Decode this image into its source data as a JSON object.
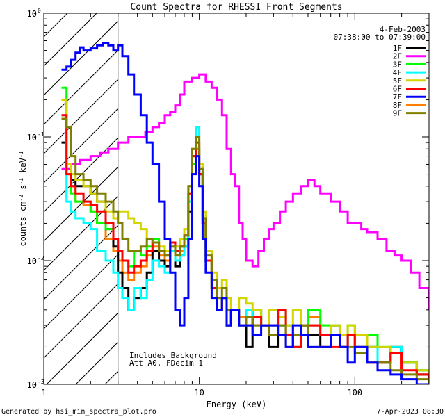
{
  "footer_left": "Generated by hsi_min_spectra_plot.pro",
  "footer_right": "7-Apr-2023 08:30",
  "chart_data": {
    "type": "line",
    "title": "Count Spectra for RHESSI Front Segments",
    "xlabel": "Energy (keV)",
    "ylabel_parts": {
      "pre": "counts cm",
      "e1": "-2",
      "mid": " s",
      "e2": "-1",
      "post": " keV",
      "e3": "-1"
    },
    "x_scale": "log",
    "y_scale": "log",
    "xlim": [
      1,
      300
    ],
    "ylim": [
      0.001,
      1
    ],
    "x_ticks": [
      {
        "value": 1,
        "label": "1"
      },
      {
        "value": 10,
        "label": "10"
      },
      {
        "value": 100,
        "label": "100"
      }
    ],
    "y_ticks": [
      {
        "value": 0.001,
        "label": "10",
        "exp": "-3"
      },
      {
        "value": 0.01,
        "label": "10",
        "exp": "-2"
      },
      {
        "value": 0.1,
        "label": "10",
        "exp": "-1"
      },
      {
        "value": 1,
        "label": "10",
        "exp": "0"
      }
    ],
    "hatched_region": {
      "x_min": 1,
      "x_max": 3
    },
    "date": "4-Feb-2003",
    "time_range": "07:38:00 to 07:39:00",
    "annotations": [
      "Includes Background",
      "Att A0, FDecim 1"
    ],
    "legend_position": "top-right",
    "series": [
      {
        "name": "1F",
        "color": "#000000",
        "x": [
          1.3,
          1.4,
          1.5,
          1.6,
          1.8,
          2.0,
          2.2,
          2.5,
          2.8,
          3.0,
          3.2,
          3.5,
          3.8,
          4.2,
          4.6,
          5.0,
          5.5,
          6.0,
          6.5,
          7.0,
          7.5,
          8.0,
          8.5,
          9.0,
          9.5,
          10.0,
          10.5,
          11,
          12,
          13,
          14,
          15,
          16,
          18,
          20,
          22,
          25,
          28,
          32,
          36,
          40,
          45,
          50,
          60,
          70,
          80,
          90,
          100,
          120,
          140,
          170,
          200,
          250,
          300
        ],
        "y": [
          0.09,
          0.06,
          0.045,
          0.04,
          0.04,
          0.035,
          0.03,
          0.018,
          0.013,
          0.008,
          0.006,
          0.004,
          0.005,
          0.006,
          0.008,
          0.012,
          0.01,
          0.009,
          0.012,
          0.009,
          0.011,
          0.013,
          0.025,
          0.06,
          0.08,
          0.05,
          0.02,
          0.01,
          0.006,
          0.004,
          0.005,
          0.003,
          0.004,
          0.003,
          0.002,
          0.004,
          0.003,
          0.002,
          0.003,
          0.0025,
          0.002,
          0.003,
          0.0025,
          0.002,
          0.003,
          0.002,
          0.0025,
          0.002,
          0.002,
          0.0015,
          0.002,
          0.0015,
          0.0012,
          0.0011
        ]
      },
      {
        "name": "2F",
        "color": "#ff00ff",
        "x": [
          1.3,
          1.5,
          1.7,
          2.0,
          2.3,
          2.6,
          3.0,
          3.5,
          4.0,
          4.5,
          5.0,
          5.5,
          6.0,
          6.5,
          7.0,
          7.5,
          8.0,
          9.0,
          10.0,
          11,
          12,
          13,
          14,
          15,
          16,
          17,
          18,
          19,
          20,
          22,
          24,
          26,
          28,
          30,
          33,
          36,
          40,
          45,
          50,
          55,
          60,
          70,
          80,
          90,
          100,
          110,
          120,
          140,
          160,
          180,
          200,
          230,
          260,
          300
        ],
        "y": [
          0.055,
          0.06,
          0.065,
          0.07,
          0.075,
          0.08,
          0.09,
          0.1,
          0.1,
          0.11,
          0.12,
          0.13,
          0.15,
          0.16,
          0.18,
          0.22,
          0.28,
          0.3,
          0.32,
          0.28,
          0.25,
          0.2,
          0.15,
          0.08,
          0.05,
          0.04,
          0.02,
          0.015,
          0.01,
          0.009,
          0.012,
          0.015,
          0.018,
          0.02,
          0.025,
          0.03,
          0.035,
          0.04,
          0.045,
          0.04,
          0.035,
          0.03,
          0.025,
          0.02,
          0.02,
          0.018,
          0.017,
          0.015,
          0.012,
          0.011,
          0.01,
          0.008,
          0.006,
          0.004
        ]
      },
      {
        "name": "3F",
        "color": "#00ff00",
        "x": [
          1.3,
          1.4,
          1.5,
          1.6,
          1.8,
          2.0,
          2.2,
          2.5,
          2.8,
          3.0,
          3.2,
          3.5,
          3.8,
          4.2,
          4.6,
          5.0,
          5.5,
          6.0,
          6.5,
          7.0,
          7.5,
          8.0,
          8.5,
          9.0,
          9.5,
          10.0,
          10.5,
          11,
          12,
          13,
          14,
          15,
          16,
          18,
          20,
          22,
          25,
          28,
          32,
          36,
          40,
          45,
          50,
          60,
          70,
          80,
          90,
          100,
          120,
          140,
          170,
          200,
          250,
          300
        ],
        "y": [
          0.25,
          0.05,
          0.035,
          0.03,
          0.03,
          0.025,
          0.02,
          0.018,
          0.015,
          0.012,
          0.01,
          0.009,
          0.012,
          0.011,
          0.013,
          0.015,
          0.012,
          0.011,
          0.014,
          0.012,
          0.013,
          0.015,
          0.03,
          0.06,
          0.08,
          0.05,
          0.02,
          0.01,
          0.006,
          0.004,
          0.005,
          0.003,
          0.004,
          0.003,
          0.003,
          0.004,
          0.003,
          0.003,
          0.004,
          0.003,
          0.002,
          0.003,
          0.004,
          0.003,
          0.003,
          0.0025,
          0.003,
          0.002,
          0.0025,
          0.002,
          0.0018,
          0.0015,
          0.0013,
          0.0011
        ]
      },
      {
        "name": "4F",
        "color": "#00ffff",
        "x": [
          1.3,
          1.4,
          1.5,
          1.6,
          1.8,
          2.0,
          2.2,
          2.5,
          2.8,
          3.0,
          3.2,
          3.5,
          3.8,
          4.2,
          4.6,
          5.0,
          5.5,
          6.0,
          6.5,
          7.0,
          7.5,
          8.0,
          8.5,
          9.0,
          9.5,
          10.0,
          10.5,
          11,
          12,
          13,
          14,
          15,
          16,
          18,
          20,
          22,
          25,
          28,
          32,
          36,
          40,
          45,
          50,
          60,
          70,
          80,
          90,
          100,
          120,
          140,
          170,
          200,
          250,
          300
        ],
        "y": [
          0.15,
          0.03,
          0.025,
          0.022,
          0.02,
          0.018,
          0.012,
          0.01,
          0.008,
          0.006,
          0.005,
          0.004,
          0.006,
          0.005,
          0.007,
          0.01,
          0.009,
          0.008,
          0.012,
          0.01,
          0.011,
          0.013,
          0.03,
          0.07,
          0.12,
          0.06,
          0.02,
          0.01,
          0.006,
          0.004,
          0.005,
          0.003,
          0.004,
          0.003,
          0.004,
          0.0035,
          0.003,
          0.004,
          0.003,
          0.003,
          0.0025,
          0.003,
          0.003,
          0.0025,
          0.003,
          0.002,
          0.0025,
          0.002,
          0.002,
          0.0015,
          0.002,
          0.0015,
          0.0013,
          0.0011
        ]
      },
      {
        "name": "5F",
        "color": "#d4d400",
        "x": [
          1.3,
          1.4,
          1.5,
          1.6,
          1.8,
          2.0,
          2.2,
          2.5,
          2.8,
          3.0,
          3.2,
          3.5,
          3.8,
          4.2,
          4.6,
          5.0,
          5.5,
          6.0,
          6.5,
          7.0,
          7.5,
          8.0,
          8.5,
          9.0,
          9.5,
          10.0,
          10.5,
          11,
          12,
          13,
          14,
          15,
          16,
          18,
          20,
          22,
          25,
          28,
          32,
          36,
          40,
          45,
          50,
          60,
          70,
          80,
          90,
          100,
          120,
          140,
          170,
          200,
          250,
          300
        ],
        "y": [
          0.2,
          0.06,
          0.05,
          0.045,
          0.04,
          0.035,
          0.03,
          0.025,
          0.022,
          0.025,
          0.025,
          0.022,
          0.02,
          0.018,
          0.015,
          0.014,
          0.013,
          0.012,
          0.014,
          0.013,
          0.015,
          0.018,
          0.04,
          0.08,
          0.1,
          0.06,
          0.025,
          0.012,
          0.008,
          0.006,
          0.007,
          0.005,
          0.004,
          0.005,
          0.0045,
          0.004,
          0.003,
          0.004,
          0.0035,
          0.003,
          0.004,
          0.003,
          0.003,
          0.0025,
          0.003,
          0.0025,
          0.003,
          0.0025,
          0.002,
          0.002,
          0.0018,
          0.0015,
          0.0013,
          0.0011
        ]
      },
      {
        "name": "6F",
        "color": "#ff0000",
        "x": [
          1.3,
          1.4,
          1.5,
          1.6,
          1.8,
          2.0,
          2.2,
          2.5,
          2.8,
          3.0,
          3.2,
          3.5,
          3.8,
          4.2,
          4.6,
          5.0,
          5.5,
          6.0,
          6.5,
          7.0,
          7.5,
          8.0,
          8.5,
          9.0,
          9.5,
          10.0,
          10.5,
          11,
          12,
          13,
          14,
          15,
          16,
          18,
          20,
          22,
          25,
          28,
          32,
          36,
          40,
          45,
          50,
          60,
          70,
          80,
          90,
          100,
          120,
          140,
          170,
          200,
          250,
          300
        ],
        "y": [
          0.15,
          0.05,
          0.04,
          0.035,
          0.03,
          0.028,
          0.025,
          0.02,
          0.015,
          0.012,
          0.01,
          0.008,
          0.009,
          0.01,
          0.012,
          0.014,
          0.012,
          0.011,
          0.014,
          0.012,
          0.013,
          0.016,
          0.035,
          0.07,
          0.09,
          0.05,
          0.02,
          0.01,
          0.006,
          0.004,
          0.005,
          0.003,
          0.004,
          0.003,
          0.003,
          0.0035,
          0.003,
          0.003,
          0.004,
          0.0025,
          0.002,
          0.003,
          0.003,
          0.0025,
          0.002,
          0.002,
          0.0025,
          0.002,
          0.0015,
          0.0015,
          0.0018,
          0.0013,
          0.0012,
          0.0011
        ]
      },
      {
        "name": "7F",
        "color": "#0000ff",
        "x": [
          1.3,
          1.4,
          1.5,
          1.6,
          1.7,
          1.8,
          2.0,
          2.2,
          2.4,
          2.6,
          2.8,
          3.0,
          3.2,
          3.5,
          3.8,
          4.2,
          4.6,
          5.0,
          5.5,
          6.0,
          6.5,
          7.0,
          7.5,
          8.0,
          8.5,
          9.0,
          9.5,
          10.0,
          10.5,
          11,
          12,
          13,
          14,
          15,
          16,
          18,
          20,
          22,
          25,
          28,
          32,
          36,
          40,
          45,
          50,
          60,
          70,
          80,
          90,
          100,
          120,
          140,
          170,
          200,
          250,
          300
        ],
        "y": [
          0.35,
          0.37,
          0.42,
          0.48,
          0.53,
          0.5,
          0.52,
          0.55,
          0.57,
          0.55,
          0.5,
          0.55,
          0.45,
          0.32,
          0.22,
          0.15,
          0.09,
          0.06,
          0.03,
          0.015,
          0.008,
          0.004,
          0.003,
          0.005,
          0.015,
          0.05,
          0.07,
          0.04,
          0.015,
          0.008,
          0.005,
          0.004,
          0.005,
          0.003,
          0.004,
          0.003,
          0.003,
          0.0025,
          0.003,
          0.003,
          0.0025,
          0.002,
          0.003,
          0.0025,
          0.002,
          0.002,
          0.0025,
          0.002,
          0.0015,
          0.002,
          0.0015,
          0.0013,
          0.0012,
          0.0011,
          0.001,
          0.001
        ]
      },
      {
        "name": "8F",
        "color": "#ff8000",
        "x": [
          1.3,
          1.4,
          1.5,
          1.6,
          1.8,
          2.0,
          2.2,
          2.5,
          2.8,
          3.0,
          3.2,
          3.5,
          3.8,
          4.2,
          4.6,
          5.0,
          5.5,
          6.0,
          6.5,
          7.0,
          7.5,
          8.0,
          8.5,
          9.0,
          9.5,
          10.0,
          10.5,
          11,
          12,
          13,
          14,
          15,
          16,
          18,
          20,
          22,
          25,
          28,
          32,
          36,
          40,
          45,
          50,
          60,
          70,
          80,
          90,
          100,
          120,
          140,
          170,
          200,
          250,
          300
        ],
        "y": [
          0.2,
          0.05,
          0.04,
          0.03,
          0.028,
          0.025,
          0.02,
          0.015,
          0.012,
          0.01,
          0.008,
          0.007,
          0.008,
          0.009,
          0.011,
          0.013,
          0.011,
          0.01,
          0.013,
          0.011,
          0.012,
          0.015,
          0.035,
          0.07,
          0.09,
          0.05,
          0.02,
          0.01,
          0.006,
          0.004,
          0.005,
          0.003,
          0.004,
          0.0035,
          0.004,
          0.003,
          0.003,
          0.004,
          0.0035,
          0.003,
          0.0025,
          0.003,
          0.0035,
          0.0025,
          0.003,
          0.002,
          0.0025,
          0.002,
          0.002,
          0.0015,
          0.002,
          0.0015,
          0.0013,
          0.0011
        ]
      },
      {
        "name": "9F",
        "color": "#808000",
        "x": [
          1.3,
          1.4,
          1.5,
          1.6,
          1.8,
          2.0,
          2.2,
          2.5,
          2.8,
          3.0,
          3.2,
          3.5,
          3.8,
          4.2,
          4.6,
          5.0,
          5.5,
          6.0,
          6.5,
          7.0,
          7.5,
          8.0,
          8.5,
          9.0,
          9.5,
          10.0,
          10.5,
          11,
          12,
          13,
          14,
          15,
          16,
          18,
          20,
          22,
          25,
          28,
          32,
          36,
          40,
          45,
          50,
          60,
          70,
          80,
          90,
          100,
          120,
          140,
          170,
          200,
          250,
          300
        ],
        "y": [
          0.14,
          0.12,
          0.07,
          0.05,
          0.045,
          0.04,
          0.035,
          0.03,
          0.025,
          0.02,
          0.015,
          0.012,
          0.012,
          0.013,
          0.015,
          0.014,
          0.012,
          0.011,
          0.013,
          0.011,
          0.013,
          0.016,
          0.04,
          0.08,
          0.1,
          0.055,
          0.022,
          0.011,
          0.007,
          0.005,
          0.006,
          0.004,
          0.004,
          0.003,
          0.0035,
          0.003,
          0.003,
          0.0025,
          0.003,
          0.002,
          0.0025,
          0.003,
          0.002,
          0.002,
          0.0025,
          0.002,
          0.002,
          0.0018,
          0.0015,
          0.0015,
          0.0013,
          0.0012,
          0.0011,
          0.001
        ]
      }
    ]
  }
}
